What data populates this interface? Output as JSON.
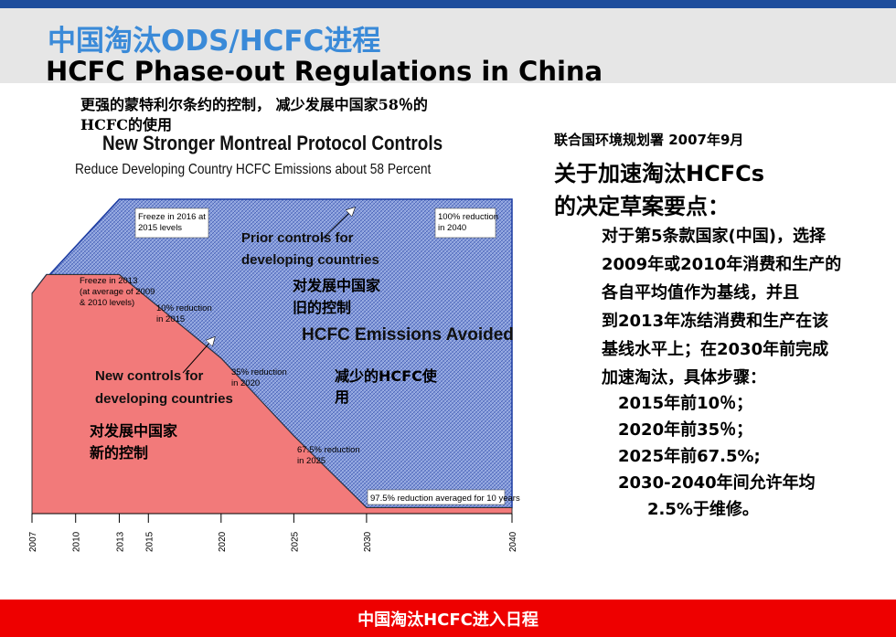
{
  "header": {
    "title_cn": "中国淘汰ODS/HCFC进程",
    "title_en": "HCFC Phase-out Regulations in China"
  },
  "caption_cn": "更强的蒙特利尔条约的控制， 减少发展中国家58％的HCFC的使用",
  "chart_data": {
    "type": "area",
    "title": "New Stronger Montreal Protocol Controls",
    "subtitle": "Reduce Developing Country HCFC Emissions about 58 Percent",
    "x_ticks": [
      "2007",
      "2010",
      "2013",
      "2015",
      "2020",
      "2025",
      "2030",
      "2040"
    ],
    "series": [
      {
        "name": "New controls for developing countries",
        "points": [
          [
            2007,
            70
          ],
          [
            2008,
            76
          ],
          [
            2013,
            76
          ],
          [
            2015,
            68.4
          ],
          [
            2020,
            49.4
          ],
          [
            2025,
            24.7
          ],
          [
            2030,
            1.9
          ],
          [
            2040,
            1.9
          ]
        ]
      },
      {
        "name": "Prior controls for developing countries",
        "points": [
          [
            2007,
            70
          ],
          [
            2013,
            100
          ],
          [
            2040,
            100
          ]
        ]
      }
    ],
    "colors": {
      "new_controls": "#f27a7a",
      "avoided": "#7b93d6",
      "border": "#1a3aa0"
    },
    "annotations": {
      "freeze2016": "Freeze in 2016 at 2015 levels",
      "reduction2040": "100% reduction in 2040",
      "freeze2013": "Freeze in 2013 (at average of 2009 & 2010 levels)",
      "reduction2015": "10% reduction in 2015",
      "reduction2020": "35% reduction in 2020",
      "reduction2025": "67.5% reduction in 2025",
      "reduction2030": "97.5% reduction averaged for 10 years"
    },
    "labels": {
      "prior_controls": "Prior controls for developing countries",
      "old_controls_cn": "对发展中国家旧的控制",
      "avoided": "HCFC Emissions Avoided",
      "reduced_cn": "减少的HCFC使用",
      "new_controls": "New controls for developing countries",
      "new_controls_cn": "对发展中国家新的控制"
    }
  },
  "right": {
    "source": "联合国环境规划署 2007年9月",
    "heading_1": "关于加速淘汰HCFCs",
    "heading_2": "的决定草案要点：",
    "body": [
      "对于第5条款国家(中国)，选择",
      "2009年或2010年消费和生产的",
      "各自平均值作为基线，并且",
      "到2013年冻结消费和生产在该",
      "基线水平上；在2030年前完成",
      "加速淘汰，具体步骤："
    ],
    "steps": [
      "2015年前10％；",
      "2020年前35％；",
      "2025年前67.5%;",
      "2030-2040年间允许年均",
      "2.5%于维修。"
    ]
  },
  "footer": "中国淘汰HCFC进入日程"
}
